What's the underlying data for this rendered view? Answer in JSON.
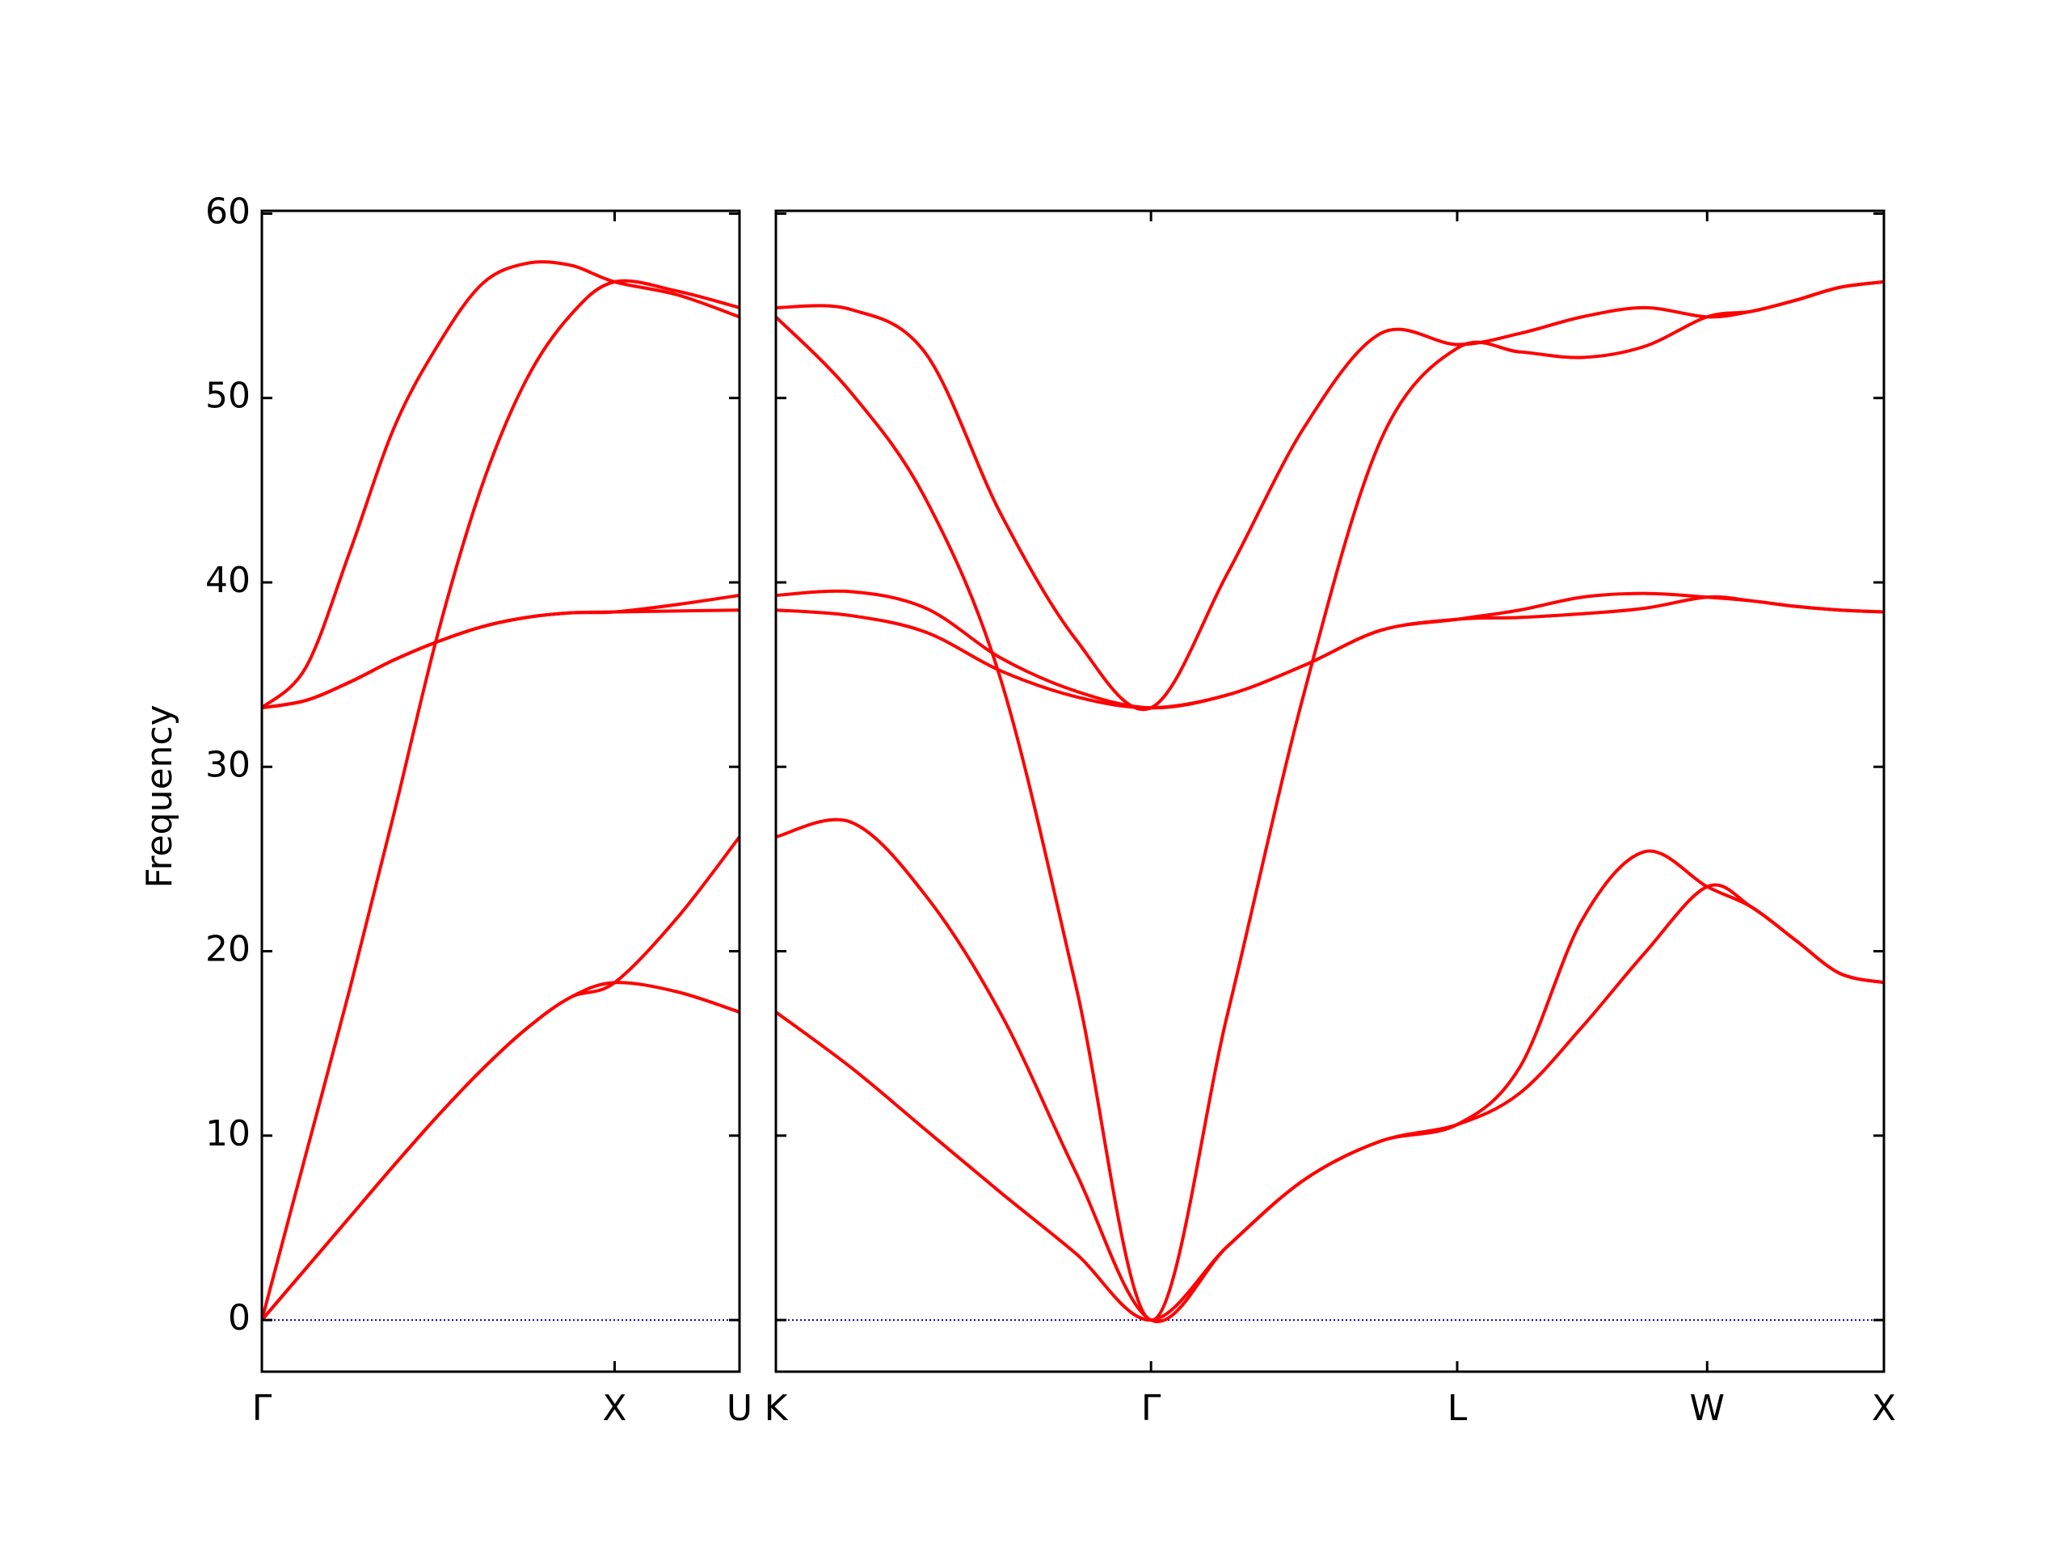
{
  "chart_data": [
    {
      "type": "line",
      "ylabel": "Frequency",
      "ylim": [
        -2.8,
        60.15
      ],
      "yticks": [
        0,
        10,
        20,
        30,
        40,
        50,
        60
      ],
      "xlim": [
        0,
        1.354
      ],
      "xticks": [
        {
          "value": 0,
          "label": "Γ"
        },
        {
          "value": 1,
          "label": "X"
        },
        {
          "value": 1.354,
          "label": "U"
        }
      ],
      "zero_line": {
        "color": "#0000cc"
      },
      "x": [
        0,
        0.125,
        0.25,
        0.375,
        0.5,
        0.625,
        0.75,
        0.875,
        1,
        1.177,
        1.354
      ],
      "series": [
        {
          "color": "#ff0000",
          "values": [
            0,
            2.8,
            5.6,
            8.4,
            11.1,
            13.6,
            15.8,
            17.5,
            18.3,
            17.8,
            16.7
          ]
        },
        {
          "color": "#ff0000",
          "values": [
            0,
            2.8,
            5.6,
            8.4,
            11.1,
            13.6,
            15.8,
            17.5,
            18.3,
            21.8,
            26.2
          ]
        },
        {
          "color": "#ff0000",
          "values": [
            0,
            9,
            18,
            27.5,
            37.3,
            45.3,
            51,
            54.5,
            56.3,
            55.8,
            54.9
          ]
        },
        {
          "color": "#ff0000",
          "values": [
            33.2,
            33.6,
            34.6,
            35.8,
            36.8,
            37.6,
            38.1,
            38.35,
            38.4,
            38.45,
            38.5
          ]
        },
        {
          "color": "#ff0000",
          "values": [
            33.2,
            33.6,
            34.6,
            35.8,
            36.8,
            37.6,
            38.1,
            38.35,
            38.4,
            38.8,
            39.3
          ]
        },
        {
          "color": "#ff0000",
          "values": [
            33.2,
            35.4,
            41.7,
            48.4,
            52.9,
            56.2,
            57.3,
            57.2,
            56.3,
            55.6,
            54.4
          ]
        }
      ]
    },
    {
      "type": "line",
      "ylim": [
        -2.8,
        60.15
      ],
      "xlim": [
        0,
        3.134
      ],
      "xticks": [
        {
          "value": 0,
          "label": "K"
        },
        {
          "value": 1.061,
          "label": "Γ"
        },
        {
          "value": 1.927,
          "label": "L"
        },
        {
          "value": 2.634,
          "label": "W"
        },
        {
          "value": 3.134,
          "label": "X"
        }
      ],
      "zero_line": {
        "color": "#0000cc"
      },
      "x": [
        0,
        0.2122,
        0.4244,
        0.6366,
        0.8488,
        1.061,
        1.2775,
        1.494,
        1.7105,
        1.927,
        2.1038,
        2.2805,
        2.4573,
        2.634,
        2.759,
        2.884,
        3.009,
        3.134
      ],
      "series": [
        {
          "color": "#ff0000",
          "values": [
            16.7,
            13.7,
            10.3,
            6.9,
            3.6,
            0,
            4,
            7.6,
            9.7,
            10.6,
            12.3,
            15.9,
            19.9,
            23.5,
            22.4,
            20.6,
            18.8,
            18.3
          ]
        },
        {
          "color": "#ff0000",
          "values": [
            26.2,
            27,
            23,
            16.6,
            8,
            0,
            4,
            7.6,
            9.7,
            10.6,
            13.7,
            21.7,
            25.4,
            23.5,
            22.4,
            20.6,
            18.8,
            18.3
          ]
        },
        {
          "color": "#ff0000",
          "values": [
            54.4,
            50.3,
            44.5,
            34.7,
            18.1,
            0,
            16.6,
            34,
            47.7,
            52.7,
            52.5,
            52.2,
            52.8,
            54.4,
            54.7,
            55.3,
            56,
            56.3
          ]
        },
        {
          "color": "#ff0000",
          "values": [
            38.5,
            38.2,
            37.3,
            35.2,
            33.8,
            33.2,
            33.9,
            35.5,
            37.4,
            38,
            38.1,
            38.3,
            38.6,
            39.2,
            39,
            38.7,
            38.5,
            38.4
          ]
        },
        {
          "color": "#ff0000",
          "values": [
            39.3,
            39.5,
            38.6,
            35.9,
            34.1,
            33.2,
            33.9,
            35.5,
            37.4,
            38,
            38.5,
            39.2,
            39.4,
            39.2,
            39,
            38.7,
            38.5,
            38.4
          ]
        },
        {
          "color": "#ff0000",
          "values": [
            54.9,
            54.8,
            52.4,
            43.7,
            36.9,
            33.2,
            40.5,
            48.4,
            53.5,
            52.9,
            53.5,
            54.4,
            54.9,
            54.4,
            54.7,
            55.3,
            56,
            56.3
          ]
        }
      ]
    }
  ]
}
